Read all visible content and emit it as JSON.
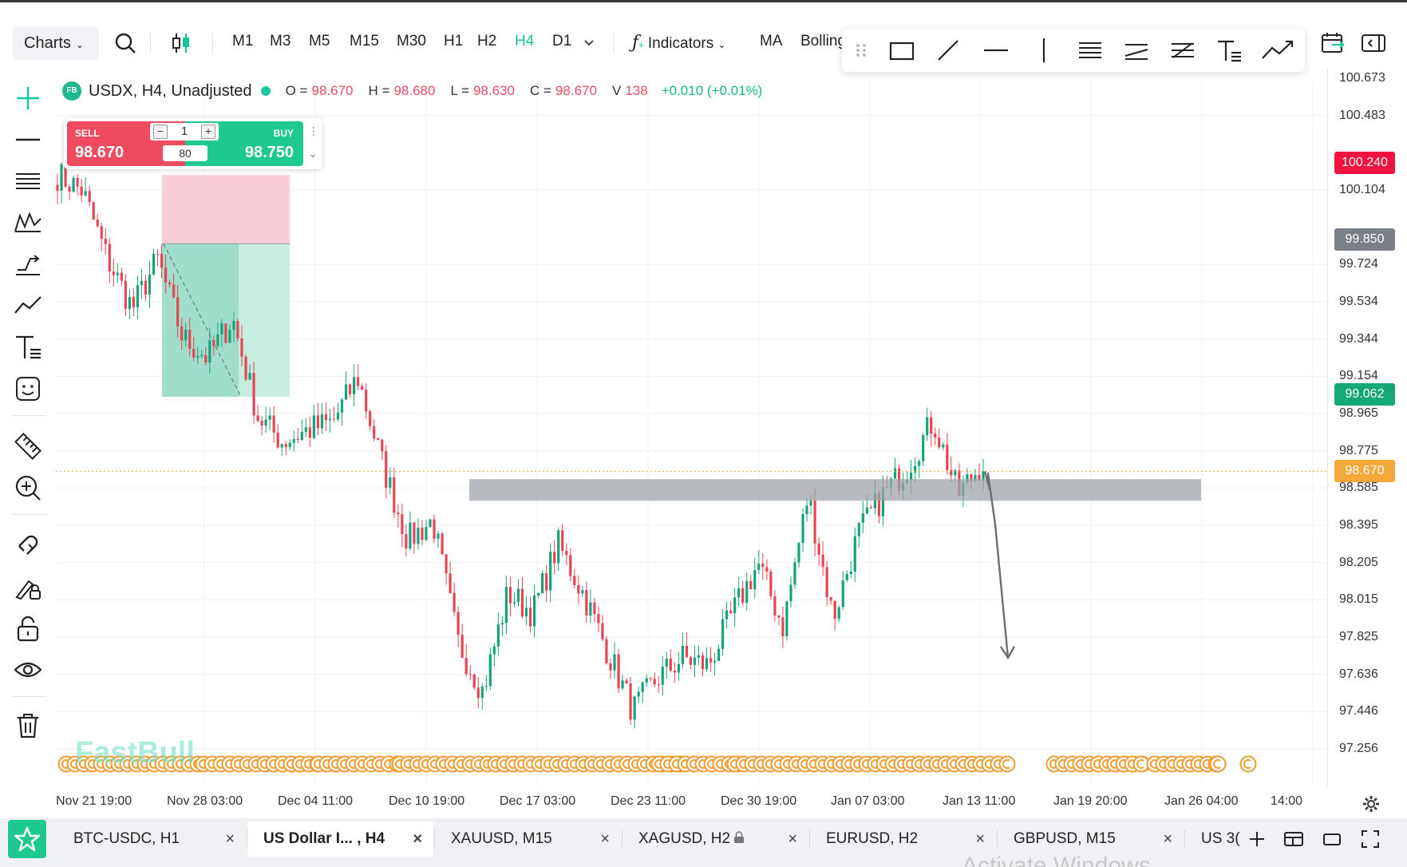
{
  "toolbar": {
    "charts_label": "Charts",
    "timeframes": [
      "M1",
      "M3",
      "M5",
      "M15",
      "M30",
      "H1",
      "H2",
      "H4",
      "D1"
    ],
    "active_timeframe": "H4",
    "indicators_label": "Indicators",
    "ma_label": "MA",
    "bollinger_label": "Bolling"
  },
  "legend": {
    "badge": "FB",
    "symbol": "USDX, H4, Unadjusted",
    "o_key": "O =",
    "o": "98.670",
    "h_key": "H =",
    "h": "98.680",
    "l_key": "L =",
    "l": "98.630",
    "c_key": "C =",
    "c": "98.670",
    "v_key": "V",
    "v": "138",
    "change": "+0.010 (+0.01%)"
  },
  "trade_panel": {
    "sell_label": "SELL",
    "sell_price": "98.670",
    "buy_label": "BUY",
    "buy_price": "98.750",
    "quantity": "1",
    "spread": "80",
    "minus": "−",
    "plus": "+"
  },
  "price_axis": {
    "labels": [
      "100.673",
      "100.483",
      "100.104",
      "99.724",
      "99.534",
      "99.344",
      "99.154",
      "98.965",
      "98.775",
      "98.585",
      "98.395",
      "98.205",
      "98.015",
      "97.825",
      "97.636",
      "97.446",
      "97.256"
    ],
    "tags": [
      {
        "value": "100.240",
        "color": "#f0123f"
      },
      {
        "value": "99.850",
        "color": "#7b7f87"
      },
      {
        "value": "99.062",
        "color": "#17a877"
      },
      {
        "value": "98.670",
        "color": "#f4a83a"
      }
    ]
  },
  "time_axis": {
    "labels": [
      "Nov 21 19:00",
      "Nov 28 03:00",
      "Dec 04 11:00",
      "Dec 10 19:00",
      "Dec 17 03:00",
      "Dec 23 11:00",
      "Dec 30 19:00",
      "Jan 07 03:00",
      "Jan 13 11:00",
      "Jan 19 20:00",
      "Jan 26 04:00",
      "14:00"
    ]
  },
  "chart_data": {
    "type": "candlestick",
    "symbol": "USDX",
    "timeframe": "H4",
    "ylim": [
      97.1,
      100.75
    ],
    "current_price": 98.67,
    "close_path": [
      [
        "Nov 21 19:00",
        100.18
      ],
      [
        "Nov 24",
        100.1
      ],
      [
        "Nov 26",
        99.75
      ],
      [
        "Nov 27",
        99.5
      ],
      [
        "Nov 28 03:00",
        99.75
      ],
      [
        "Nov 29",
        99.35
      ],
      [
        "Dec 01",
        99.25
      ],
      [
        "Dec 02",
        99.45
      ],
      [
        "Dec 03",
        98.95
      ],
      [
        "Dec 04 11:00",
        98.82
      ],
      [
        "Dec 06",
        98.88
      ],
      [
        "Dec 08",
        98.92
      ],
      [
        "Dec 09",
        99.15
      ],
      [
        "Dec 10 19:00",
        98.7
      ],
      [
        "Dec 12",
        98.32
      ],
      [
        "Dec 13",
        98.42
      ],
      [
        "Dec 14",
        97.8
      ],
      [
        "Dec 16",
        97.55
      ],
      [
        "Dec 17 03:00",
        98.05
      ],
      [
        "Dec 18",
        97.95
      ],
      [
        "Dec 19",
        98.3
      ],
      [
        "Dec 20",
        98.05
      ],
      [
        "Dec 21",
        97.75
      ],
      [
        "Dec 23 11:00",
        97.45
      ],
      [
        "Dec 24",
        97.62
      ],
      [
        "Dec 26",
        97.72
      ],
      [
        "Dec 28",
        97.68
      ],
      [
        "Dec 30 19:00",
        97.95
      ],
      [
        "Jan 02",
        98.2
      ],
      [
        "Jan 04",
        97.88
      ],
      [
        "Jan 05",
        98.55
      ],
      [
        "Jan 06",
        97.92
      ],
      [
        "Jan 07 03:00",
        98.35
      ],
      [
        "Jan 09",
        98.55
      ],
      [
        "Jan 10",
        98.7
      ],
      [
        "Jan 11",
        98.93
      ],
      [
        "Jan 12",
        98.55
      ],
      [
        "Jan 13 11:00",
        98.72
      ]
    ]
  },
  "drawings": {
    "support_zone": [
      98.52,
      98.63
    ],
    "projection_target": 97.72,
    "position_tool": {
      "entry": 99.83,
      "stop": 100.18,
      "target": 99.05
    }
  },
  "watermark": "FastBull",
  "tabs": [
    {
      "label": "BTC-USDC, H1",
      "active": false
    },
    {
      "label": "US Dollar I... , H4",
      "active": true
    },
    {
      "label": "XAUUSD, M15",
      "active": false
    },
    {
      "label": "XAGUSD, H2",
      "active": false
    },
    {
      "label": "EURUSD, H2",
      "active": false
    },
    {
      "label": "GBPUSD, M15",
      "active": false
    },
    {
      "label": "US 3(",
      "active": false
    }
  ],
  "tab_close": "×",
  "os_overlay": "Activate Windows",
  "colors": {
    "up": "#16a37c",
    "down": "#e64557",
    "accent": "#12c79b"
  }
}
